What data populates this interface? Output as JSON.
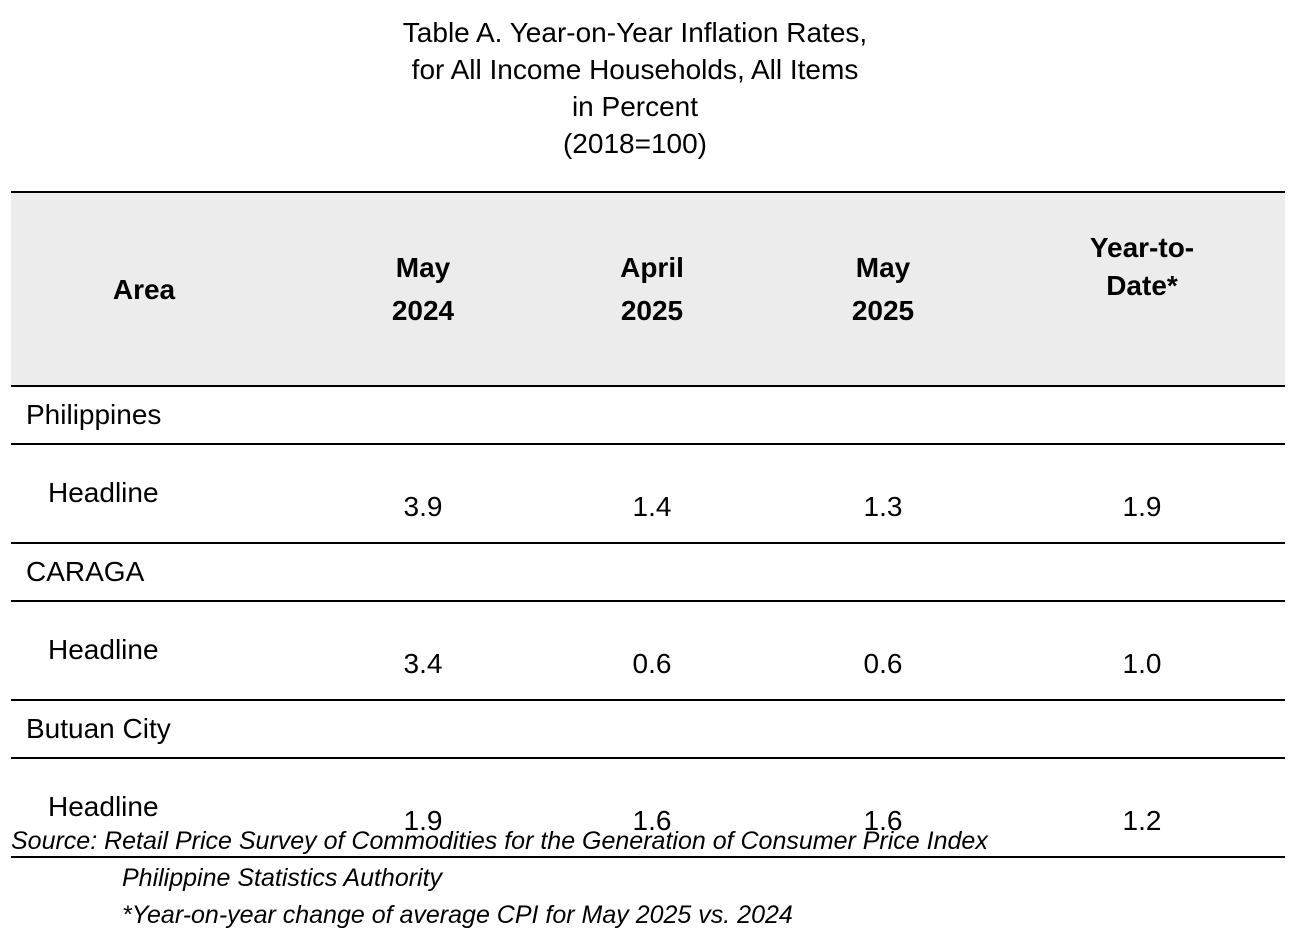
{
  "title": {
    "line1": "Table A. Year-on-Year Inflation Rates,",
    "line2": "for All Income Households, All Items",
    "line3": "in Percent",
    "line4": "(2018=100)"
  },
  "table": {
    "headers": {
      "area": "Area",
      "col1_line1": "May",
      "col1_line2": "2024",
      "col2_line1": "April",
      "col2_line2": "2025",
      "col3_line1": "May",
      "col3_line2": "2025",
      "col4_line1": "Year-to-",
      "col4_line2": "Date*"
    },
    "groups": [
      {
        "area": "Philippines",
        "row_label": "Headline",
        "values": [
          "3.9",
          "1.4",
          "1.3",
          "1.9"
        ]
      },
      {
        "area": "CARAGA",
        "row_label": "Headline",
        "values": [
          "3.4",
          "0.6",
          "0.6",
          "1.0"
        ]
      },
      {
        "area": "Butuan City",
        "row_label": "Headline",
        "values": [
          "1.9",
          "1.6",
          "1.6",
          "1.2"
        ]
      }
    ]
  },
  "footnotes": {
    "source": "Source: Retail Price Survey of Commodities for the Generation of Consumer Price Index",
    "agency": "Philippine Statistics Authority",
    "note": "*Year-on-year change of average CPI for May 2025 vs. 2024"
  }
}
